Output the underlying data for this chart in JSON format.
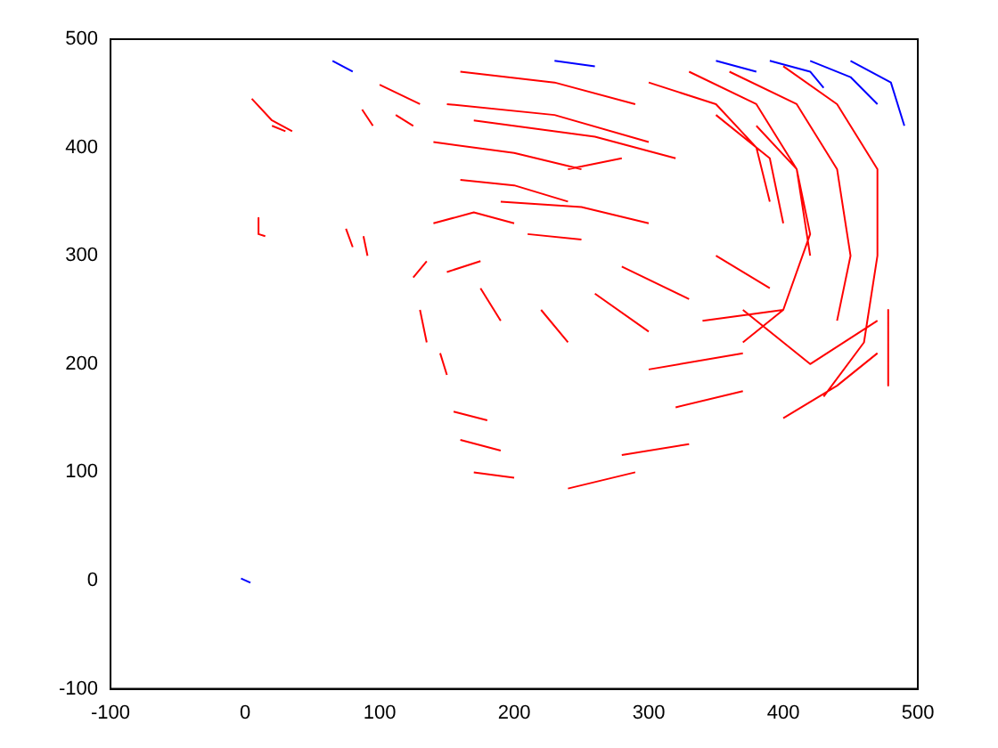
{
  "chart_data": {
    "type": "line",
    "marker": "none",
    "line_style": "solid",
    "grid": false,
    "legend": false,
    "xlim": [
      -100,
      500
    ],
    "xticks": [
      -100,
      0,
      100,
      200,
      300,
      400,
      500
    ],
    "ylim": [
      -100,
      500
    ],
    "yticks": [
      -100,
      0,
      100,
      200,
      300,
      400,
      500
    ],
    "series": [
      {
        "color": "#ff0000",
        "x": [
          280,
          330
        ],
        "values": [
          116,
          126
        ]
      },
      {
        "color": "#ff0000",
        "x": [
          5,
          20,
          35,
          null,
          20,
          30,
          null,
          10,
          10,
          15,
          null,
          75,
          80,
          null,
          88,
          91,
          null,
          87,
          95,
          null,
          112,
          125,
          null,
          100,
          130,
          null,
          160,
          230,
          290,
          null,
          150,
          230,
          300,
          null,
          170,
          260,
          320,
          null,
          140,
          200,
          250,
          null,
          160,
          200,
          240,
          null,
          190,
          250,
          300,
          null,
          140,
          170,
          200,
          null,
          210,
          250,
          null,
          125,
          135,
          null,
          150,
          175,
          null,
          130,
          135,
          null,
          145,
          150,
          null,
          175,
          190,
          null,
          220,
          240,
          null,
          260,
          300,
          null,
          280,
          330,
          null,
          155,
          180,
          null,
          160,
          190,
          null,
          170,
          200,
          null,
          240,
          290,
          null,
          320,
          370,
          null,
          300,
          370,
          null,
          340,
          400,
          null,
          350,
          390,
          null,
          330,
          380,
          410,
          420,
          null,
          360,
          410,
          440,
          450,
          440,
          null,
          400,
          440,
          470,
          470,
          460,
          430,
          null,
          380,
          410,
          420,
          400,
          370,
          null,
          350,
          390,
          400,
          null,
          370,
          420,
          470,
          null,
          400,
          440,
          470,
          null,
          478,
          478,
          null,
          300,
          350,
          380,
          390,
          null,
          240,
          280
        ],
        "values": [
          445,
          425,
          415,
          null,
          420,
          415,
          null,
          335,
          320,
          318,
          null,
          325,
          308,
          null,
          318,
          300,
          null,
          435,
          420,
          null,
          430,
          420,
          null,
          458,
          440,
          null,
          470,
          460,
          440,
          null,
          440,
          430,
          405,
          null,
          425,
          410,
          390,
          null,
          405,
          395,
          380,
          null,
          370,
          365,
          350,
          null,
          350,
          345,
          330,
          null,
          330,
          340,
          330,
          null,
          320,
          315,
          null,
          280,
          295,
          null,
          285,
          295,
          null,
          250,
          220,
          null,
          210,
          190,
          null,
          270,
          240,
          null,
          250,
          220,
          null,
          265,
          230,
          null,
          290,
          260,
          null,
          156,
          148,
          null,
          130,
          120,
          null,
          100,
          95,
          null,
          85,
          100,
          null,
          160,
          175,
          null,
          195,
          210,
          null,
          240,
          250,
          null,
          300,
          270,
          null,
          470,
          440,
          380,
          300,
          null,
          470,
          440,
          380,
          300,
          240,
          null,
          475,
          440,
          380,
          300,
          220,
          170,
          null,
          420,
          380,
          320,
          250,
          220,
          null,
          430,
          390,
          330,
          null,
          250,
          200,
          240,
          null,
          150,
          180,
          210,
          null,
          250,
          180,
          null,
          460,
          440,
          400,
          350,
          null,
          380,
          390
        ]
      },
      {
        "color": "#0000ff",
        "x": [
          65,
          80,
          null,
          230,
          260,
          null,
          350,
          380,
          null,
          390,
          420,
          430,
          null,
          420,
          450,
          470,
          null,
          450,
          480,
          490,
          null,
          -3,
          4
        ],
        "values": [
          480,
          470,
          null,
          480,
          475,
          null,
          480,
          470,
          null,
          480,
          470,
          455,
          null,
          480,
          465,
          440,
          null,
          480,
          460,
          420,
          null,
          2,
          -2
        ]
      }
    ]
  }
}
